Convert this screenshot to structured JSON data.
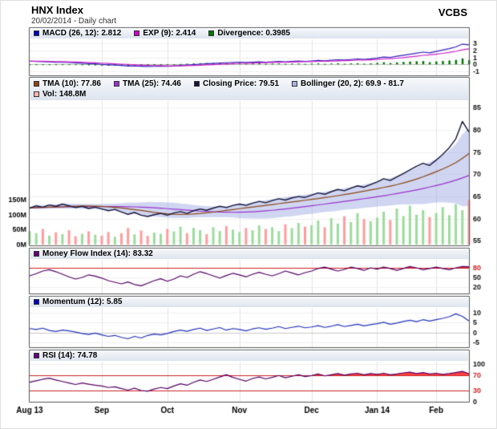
{
  "header": {
    "title": "HNX Index",
    "subtitle": "20/02/2014 - Daily chart",
    "brand": "VCBS"
  },
  "colors": {
    "macd_line": "#3322bb",
    "exp_line": "#cc22cc",
    "divergence_bar": "#007700",
    "tma10_line": "#8b4513",
    "tma25_line": "#9933cc",
    "close_line": "#141438",
    "bollinger_fill": "#aab4e6",
    "vol_up": "#9cdc9c",
    "vol_down": "#ff9c9c",
    "mfi_line": "#550066",
    "momentum_line": "#2233bb",
    "rsi_line": "#550066",
    "threshold_line": "#cc2222",
    "overbought_fill": "#ff4040",
    "tick_red": "#cc2222",
    "panel_border": "#555555"
  },
  "legends": {
    "macd": [
      {
        "label": "MACD (26, 12): 2.812",
        "color": "#0000bb"
      },
      {
        "label": "EXP (9): 2.414",
        "color": "#cc00cc"
      },
      {
        "label": "Divergence: 0.3985",
        "color": "#007700"
      }
    ],
    "price_row1": [
      {
        "label": "TMA (10): 77.86",
        "color": "#8b4513"
      },
      {
        "label": "TMA (25): 74.46",
        "color": "#9933cc"
      },
      {
        "label": "Closing Price: 79.51",
        "color": "#141438"
      },
      {
        "label": "Bollinger (20, 2): 69.9 - 81.7",
        "color": "#aab4e6"
      }
    ],
    "price_row2": [
      {
        "label": "Vol: 148.8M",
        "color": "#ffb4ac"
      }
    ],
    "mfi": [
      {
        "label": "Money Flow Index (14): 83.32",
        "color": "#660077"
      }
    ],
    "momentum": [
      {
        "label": "Momentum (12): 5.85",
        "color": "#0000bb"
      }
    ],
    "rsi": [
      {
        "label": "RSI (14): 74.78",
        "color": "#660077"
      }
    ]
  },
  "chart_data": {
    "type": "line",
    "title": "HNX Index daily chart with MACD, Bollinger, MFI, Momentum, RSI",
    "x_axis": {
      "n_points": 68,
      "ticks": [
        {
          "index": 0,
          "label": "Aug 13",
          "bold": true
        },
        {
          "index": 11,
          "label": "Sep",
          "bold": false
        },
        {
          "index": 21,
          "label": "Oct",
          "bold": false
        },
        {
          "index": 32,
          "label": "Nov",
          "bold": false
        },
        {
          "index": 43,
          "label": "Dec",
          "bold": false
        },
        {
          "index": 53,
          "label": "Jan 14",
          "bold": true
        },
        {
          "index": 62,
          "label": "Feb",
          "bold": false
        }
      ]
    },
    "macd_panel": {
      "ylim": [
        -1.6,
        3.6
      ],
      "yticks": [
        3,
        2,
        1,
        0,
        -1
      ],
      "signal_period": 9,
      "macd_last": 2.812,
      "exp_last": 2.414,
      "divergence_last": 0.3985,
      "macd": [
        0.45,
        0.4,
        0.38,
        0.35,
        0.3,
        0.28,
        0.25,
        0.2,
        0.15,
        0.1,
        0.05,
        -0.02,
        -0.08,
        -0.12,
        -0.18,
        -0.25,
        -0.22,
        -0.28,
        -0.32,
        -0.3,
        -0.26,
        -0.3,
        -0.25,
        -0.18,
        -0.12,
        -0.05,
        0.02,
        0.08,
        0.12,
        0.18,
        0.22,
        0.28,
        0.3,
        0.26,
        0.3,
        0.34,
        0.3,
        0.35,
        0.4,
        0.36,
        0.42,
        0.46,
        0.42,
        0.48,
        0.55,
        0.5,
        0.58,
        0.65,
        0.6,
        0.68,
        0.75,
        0.7,
        0.78,
        0.9,
        1.05,
        1.0,
        1.15,
        1.3,
        1.45,
        1.6,
        1.75,
        1.65,
        1.85,
        2.05,
        2.25,
        2.5,
        2.9,
        2.812
      ]
    },
    "price_panel": {
      "ylim": [
        54,
        86.5
      ],
      "yticks": [
        85,
        80,
        75,
        70,
        65,
        60,
        55
      ],
      "close_last": 79.51,
      "tma10_last": 77.86,
      "tma25_last": 74.46,
      "bollinger_last": "69.9 - 81.7",
      "volume_last": "148.8M",
      "indicators": {
        "tma10_period": 10,
        "tma25_period": 25,
        "bollinger_period": 20,
        "bollinger_mult": 2
      },
      "volume_axis_max": 150,
      "volume_yticks": [
        {
          "label": "150M",
          "value": 150
        },
        {
          "label": "100M",
          "value": 100
        },
        {
          "label": "50M",
          "value": 50
        },
        {
          "label": "0M",
          "value": 0
        }
      ],
      "close": [
        62.4,
        62.9,
        62.6,
        63.1,
        62.8,
        63.3,
        62.9,
        62.5,
        62.8,
        62.3,
        62.6,
        62.2,
        61.8,
        62.1,
        61.5,
        61.0,
        61.4,
        60.8,
        60.5,
        60.9,
        61.2,
        60.8,
        61.3,
        61.6,
        61.2,
        61.8,
        62.2,
        61.9,
        62.4,
        62.8,
        62.5,
        63.0,
        63.3,
        63.0,
        63.5,
        63.9,
        63.6,
        64.1,
        64.5,
        64.2,
        64.7,
        65.0,
        64.8,
        65.3,
        65.8,
        65.5,
        66.1,
        66.6,
        66.3,
        66.9,
        67.4,
        67.1,
        67.7,
        68.3,
        69.0,
        68.6,
        69.4,
        70.2,
        71.0,
        71.8,
        72.5,
        72.0,
        73.2,
        74.5,
        76.0,
        78.0,
        81.9,
        79.51
      ],
      "volume": [
        45,
        38,
        52,
        30,
        41,
        35,
        48,
        28,
        36,
        44,
        33,
        30,
        42,
        26,
        38,
        55,
        34,
        47,
        29,
        40,
        36,
        52,
        44,
        60,
        38,
        56,
        48,
        35,
        58,
        45,
        62,
        50,
        42,
        55,
        48,
        64,
        52,
        58,
        45,
        68,
        55,
        72,
        60,
        65,
        80,
        58,
        88,
        70,
        95,
        75,
        105,
        85,
        78,
        90,
        110,
        82,
        120,
        95,
        130,
        100,
        115,
        92,
        105,
        125,
        98,
        135,
        115,
        148.8
      ]
    },
    "mfi_panel": {
      "ylim": [
        0,
        105
      ],
      "yticks": [
        80,
        50,
        20
      ],
      "red_yticks": [
        80
      ],
      "thresholds": [
        80
      ],
      "overbought": 80,
      "last": 83.32,
      "values": [
        55,
        62,
        70,
        74,
        68,
        60,
        52,
        45,
        50,
        58,
        54,
        48,
        40,
        35,
        30,
        36,
        28,
        24,
        32,
        40,
        46,
        38,
        45,
        55,
        50,
        60,
        68,
        62,
        55,
        48,
        56,
        63,
        58,
        52,
        60,
        66,
        60,
        55,
        62,
        70,
        64,
        58,
        65,
        70,
        78,
        82,
        76,
        70,
        75,
        82,
        78,
        72,
        80,
        76,
        82,
        78,
        72,
        78,
        84,
        80,
        74,
        78,
        82,
        78,
        74,
        80,
        84,
        83.32
      ]
    },
    "momentum_panel": {
      "ylim": [
        -7.5,
        12.5
      ],
      "yticks": [
        10,
        5,
        0,
        -5
      ],
      "last": 5.85,
      "values": [
        2.0,
        1.5,
        2.2,
        1.0,
        0.5,
        1.2,
        0.8,
        0.2,
        -0.5,
        -1.0,
        -0.3,
        -1.2,
        -2.0,
        -1.5,
        -2.5,
        -3.2,
        -2.0,
        -2.8,
        -1.5,
        -0.8,
        -1.2,
        -0.5,
        0.5,
        1.2,
        0.6,
        1.5,
        2.2,
        1.0,
        1.8,
        2.5,
        1.2,
        2.0,
        1.5,
        0.8,
        1.8,
        2.4,
        1.6,
        2.2,
        3.0,
        2.0,
        2.6,
        3.2,
        2.4,
        2.8,
        3.5,
        2.6,
        3.2,
        4.0,
        3.0,
        3.6,
        4.2,
        3.4,
        4.0,
        4.5,
        5.2,
        4.2,
        4.8,
        5.6,
        6.2,
        5.5,
        6.5,
        5.8,
        6.5,
        7.2,
        8.0,
        9.5,
        8.2,
        5.85
      ]
    },
    "rsi_panel": {
      "ylim": [
        0,
        107
      ],
      "yticks": [
        100,
        70,
        30,
        0
      ],
      "red_yticks": [
        70,
        30
      ],
      "thresholds": [
        70,
        30
      ],
      "overbought": 70,
      "last": 74.78,
      "values": [
        52,
        56,
        60,
        63,
        58,
        54,
        50,
        46,
        50,
        47,
        44,
        42,
        38,
        40,
        35,
        31,
        36,
        30,
        28,
        34,
        38,
        35,
        42,
        48,
        44,
        52,
        58,
        54,
        60,
        66,
        72,
        65,
        60,
        55,
        62,
        66,
        61,
        65,
        70,
        64,
        68,
        72,
        67,
        70,
        74,
        69,
        72,
        75,
        71,
        74,
        76,
        72,
        75,
        73,
        76,
        72,
        74,
        77,
        79,
        75,
        78,
        74,
        76,
        73,
        75,
        78,
        81,
        74.78
      ]
    }
  }
}
